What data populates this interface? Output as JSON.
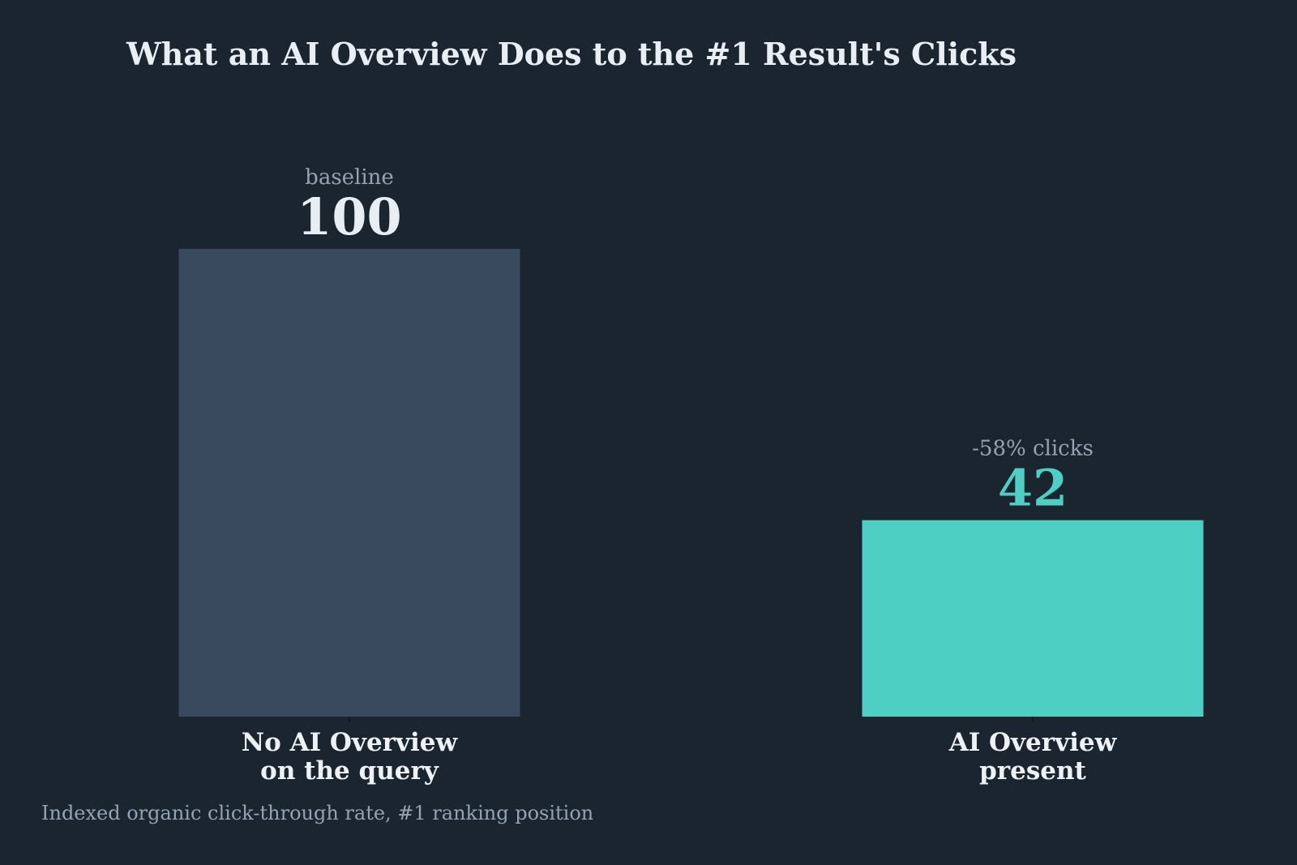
{
  "chart_data": {
    "type": "bar",
    "title": "What an AI Overview Does to the #1 Result's Clicks",
    "categories": [
      [
        "No AI Overview",
        "on the query"
      ],
      [
        "AI Overview",
        "present"
      ]
    ],
    "values": [
      100,
      42
    ],
    "annotations": [
      "baseline",
      "-58% clicks"
    ],
    "value_labels": [
      "100",
      "42"
    ],
    "bar_colors": [
      "#3a4a5e",
      "#4ecfc4"
    ],
    "value_label_colors": [
      "#e8eef4",
      "#4ecfc4"
    ],
    "ylim": [
      0,
      100
    ],
    "grid": false,
    "footnote": "Indexed organic click-through rate, #1 ranking position"
  }
}
